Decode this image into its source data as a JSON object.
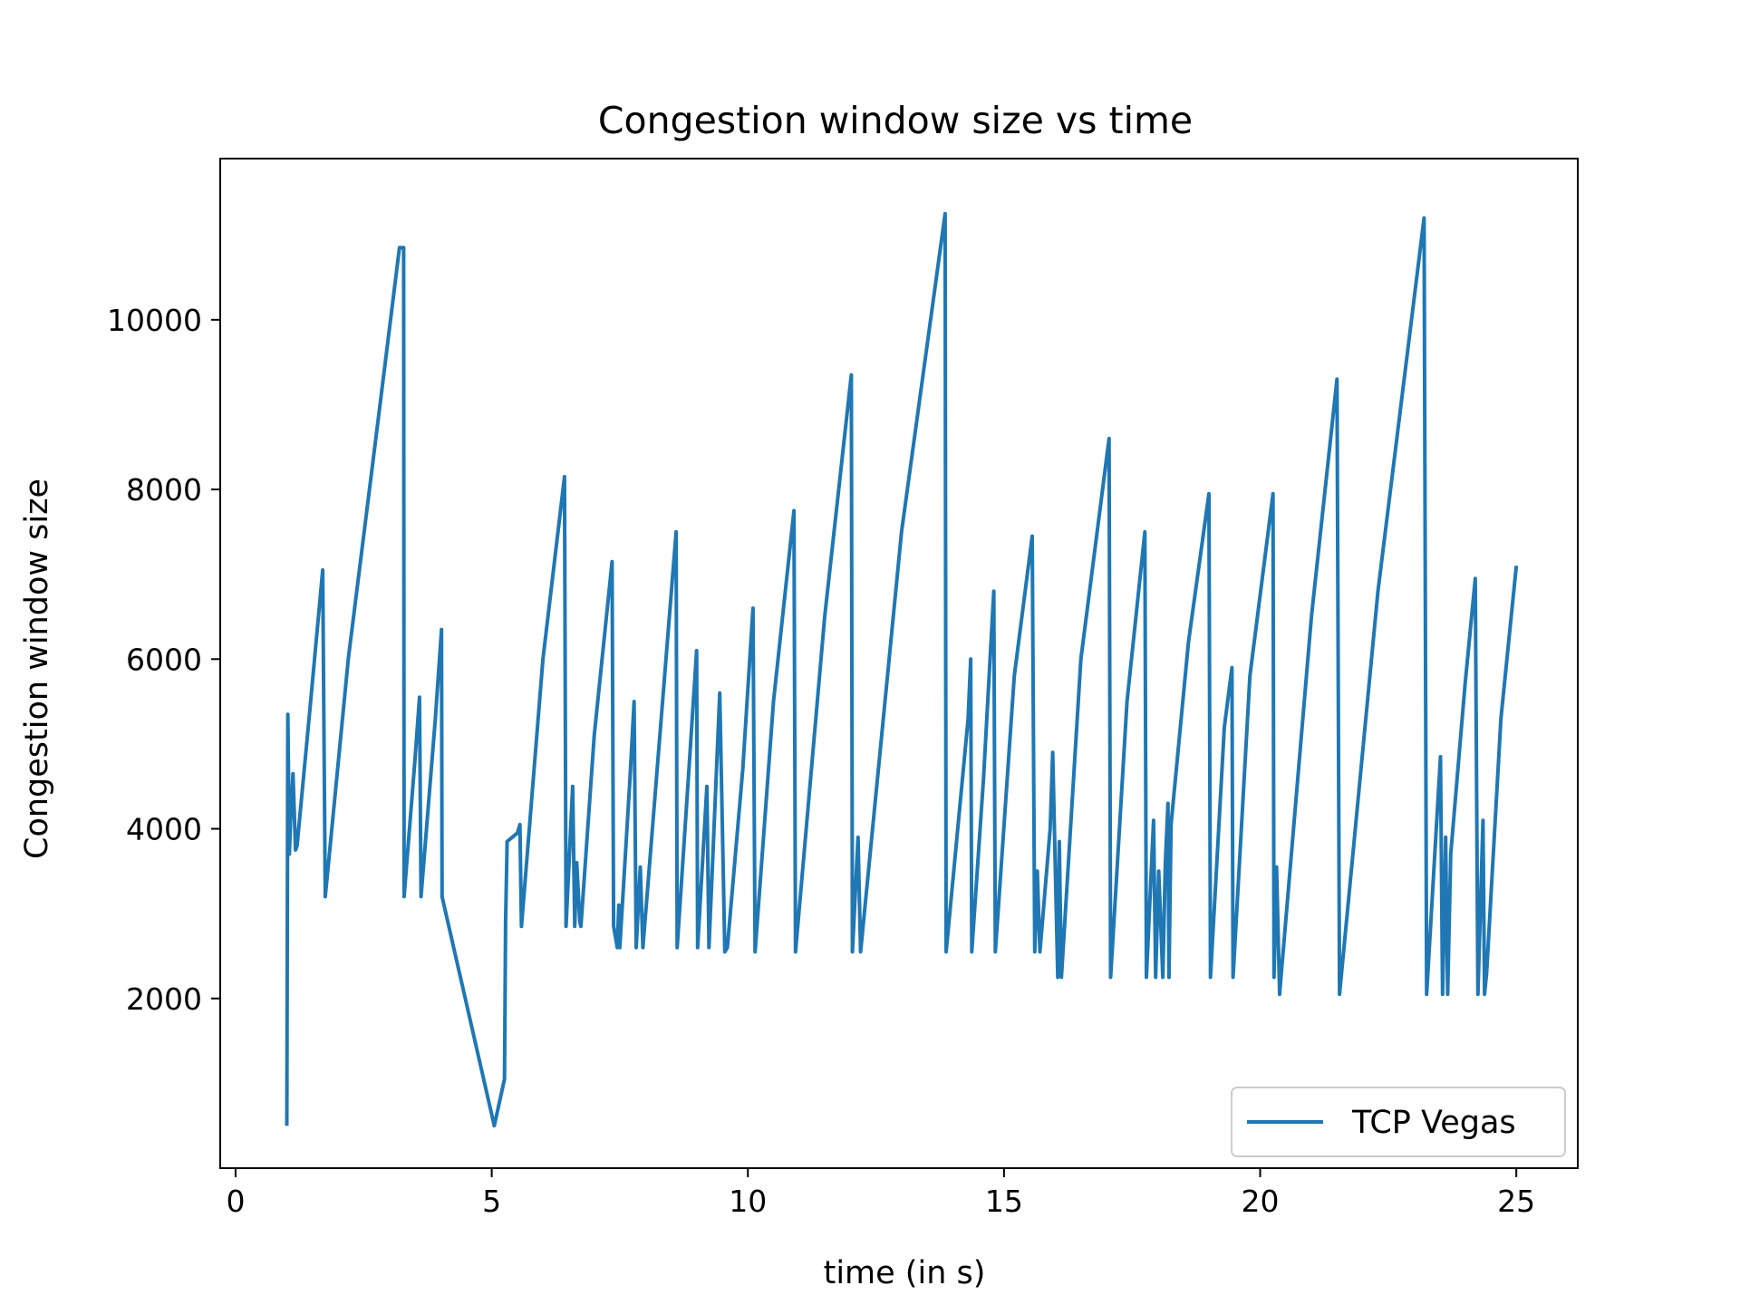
{
  "chart_data": {
    "type": "line",
    "title": "Congestion window size vs time",
    "xlabel": "time (in s)",
    "ylabel": "Congestion window size",
    "xlim": [
      -0.3,
      26.2
    ],
    "ylim": [
      -0.1,
      11900
    ],
    "xticks": [
      0,
      5,
      10,
      15,
      20,
      25
    ],
    "yticks": [
      2000,
      4000,
      6000,
      8000,
      10000
    ],
    "legend": {
      "position": "lower-right",
      "entries": [
        "TCP Vegas"
      ]
    },
    "grid": false,
    "colors": {
      "series": "#1f77b4",
      "axes": "#000000",
      "legend_border": "#cccccc"
    },
    "series": [
      {
        "name": "TCP Vegas",
        "x": [
          1.0,
          1.02,
          1.05,
          1.08,
          1.12,
          1.17,
          1.2,
          1.45,
          1.7,
          1.75,
          2.2,
          2.8,
          3.2,
          3.28,
          3.29,
          3.5,
          3.59,
          3.62,
          3.9,
          4.02,
          4.03,
          5.05,
          5.25,
          5.27,
          5.3,
          5.5,
          5.55,
          5.58,
          6.0,
          6.42,
          6.45,
          6.58,
          6.62,
          6.66,
          6.72,
          6.74,
          7.0,
          7.35,
          7.38,
          7.45,
          7.48,
          7.5,
          7.7,
          7.78,
          7.82,
          7.9,
          7.95,
          8.6,
          8.62,
          8.85,
          9.0,
          9.02,
          9.2,
          9.24,
          9.45,
          9.55,
          9.6,
          9.9,
          10.1,
          10.14,
          10.5,
          10.9,
          10.93,
          11.5,
          12.02,
          12.04,
          12.15,
          12.2,
          13.0,
          13.85,
          13.87,
          14.3,
          14.35,
          14.37,
          14.6,
          14.8,
          14.83,
          15.2,
          15.55,
          15.6,
          15.65,
          15.7,
          15.9,
          15.95,
          16.05,
          16.08,
          16.12,
          16.5,
          17.05,
          17.08,
          17.4,
          17.75,
          17.78,
          17.92,
          17.96,
          18.02,
          18.1,
          18.15,
          18.2,
          18.22,
          18.26,
          18.6,
          19.0,
          19.03,
          19.3,
          19.45,
          19.47,
          19.8,
          20.25,
          20.27,
          20.32,
          20.38,
          20.4,
          21.0,
          21.5,
          21.55,
          22.3,
          23.2,
          23.25,
          23.52,
          23.56,
          23.62,
          23.66,
          23.72,
          24.0,
          24.2,
          24.25,
          24.35,
          24.38,
          24.42,
          24.7,
          25.0
        ],
        "y": [
          500,
          5350,
          3700,
          4200,
          4650,
          3750,
          3800,
          5400,
          7050,
          3200,
          6000,
          8900,
          10850,
          10850,
          3200,
          4800,
          5550,
          3200,
          5300,
          6350,
          3200,
          500,
          1050,
          2900,
          3850,
          3950,
          4050,
          2850,
          6000,
          8150,
          2850,
          4500,
          2850,
          3600,
          2900,
          2850,
          5100,
          7150,
          2850,
          2600,
          3100,
          2600,
          4600,
          5500,
          2600,
          3550,
          2600,
          7500,
          2600,
          4700,
          6100,
          2600,
          4500,
          2600,
          5600,
          2550,
          2600,
          4700,
          6600,
          2550,
          5500,
          7750,
          2550,
          6500,
          9350,
          2550,
          3900,
          2550,
          7500,
          11250,
          2550,
          5300,
          6000,
          2550,
          4600,
          6800,
          2550,
          5800,
          7450,
          2550,
          3500,
          2550,
          4000,
          4900,
          2250,
          3850,
          2250,
          6000,
          8600,
          2250,
          5500,
          7500,
          2250,
          4100,
          2250,
          3500,
          2250,
          3600,
          4300,
          2250,
          4050,
          6200,
          7950,
          2250,
          5200,
          5900,
          2250,
          5800,
          7950,
          2250,
          3550,
          2050,
          2200,
          6500,
          9300,
          2050,
          6800,
          11200,
          2050,
          4850,
          2050,
          3900,
          2050,
          3700,
          5700,
          6950,
          2050,
          4100,
          2050,
          2300,
          5300,
          7100
        ]
      }
    ]
  }
}
